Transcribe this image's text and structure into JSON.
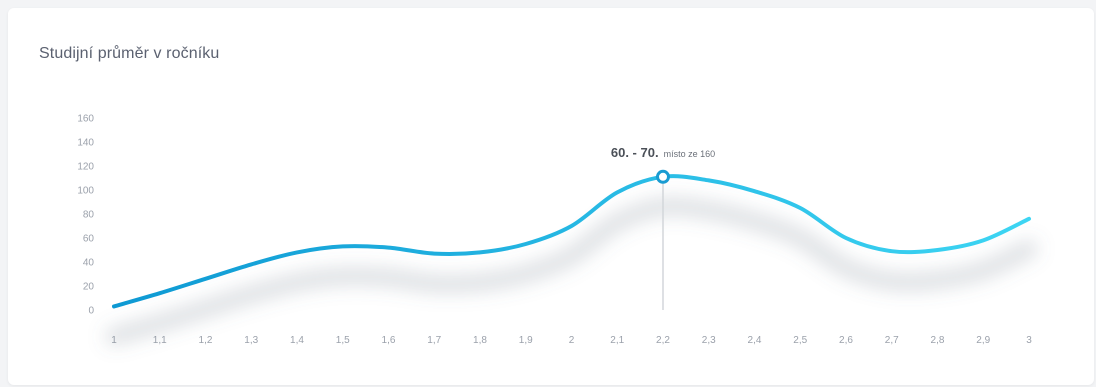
{
  "card": {
    "title": "Studijní průměr v ročníku"
  },
  "chart_data": {
    "type": "line",
    "title": "Studijní průměr v ročníku",
    "xlabel": "",
    "ylabel": "",
    "ylim": [
      0,
      160
    ],
    "yticks": [
      "0",
      "20",
      "40",
      "60",
      "80",
      "100",
      "120",
      "140",
      "160"
    ],
    "categories": [
      "1",
      "1,1",
      "1,2",
      "1,3",
      "1,4",
      "1,5",
      "1,6",
      "1,7",
      "1,8",
      "1,9",
      "2",
      "2,1",
      "2,2",
      "2,3",
      "2,4",
      "2,5",
      "2,6",
      "2,7",
      "2,8",
      "2,9",
      "3"
    ],
    "series": [
      {
        "values": [
          3,
          14,
          26,
          38,
          48,
          53,
          52,
          47,
          48,
          55,
          70,
          98,
          111,
          108,
          99,
          85,
          60,
          49,
          50,
          58,
          76
        ]
      }
    ],
    "highlight": {
      "category": "2,2",
      "value": 111,
      "label_bold": "60. - 70.",
      "label_small": "místo ze 160"
    },
    "colors": {
      "line_start": "#0e99d3",
      "line_end": "#3dd5f3",
      "marker": "#1a9cd2",
      "guide": "#d3d6da"
    },
    "grid": false
  }
}
